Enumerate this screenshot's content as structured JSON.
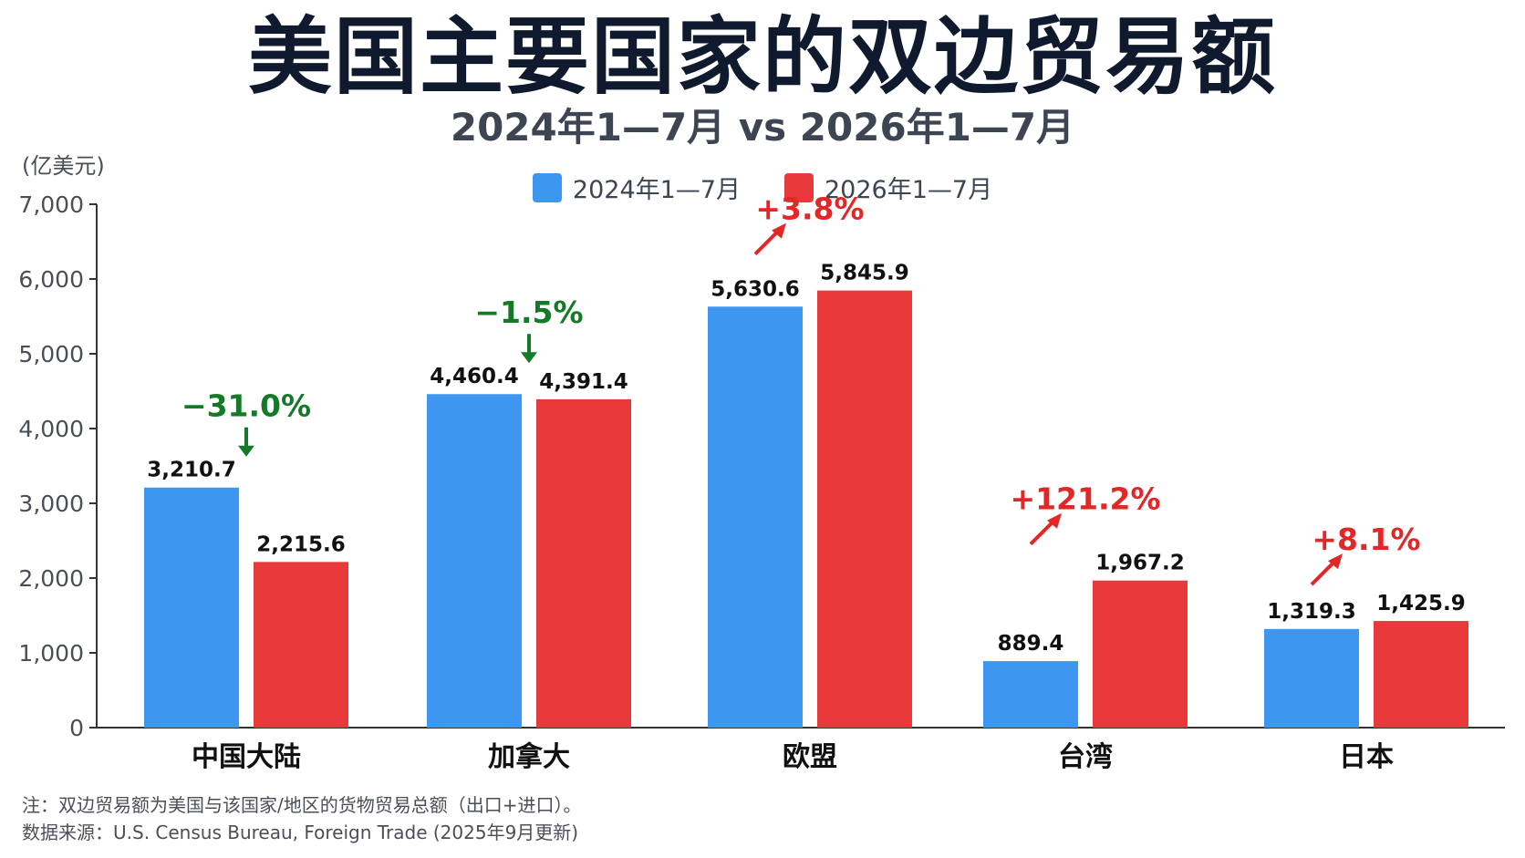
{
  "chart_data": {
    "type": "bar",
    "title": "美国主要国家的双边贸易额",
    "subtitle": "2024年1—7月 vs 2026年1—7月",
    "ylabel": "(亿美元)",
    "ylim": [
      0,
      7000
    ],
    "yticks": [
      0,
      1000,
      2000,
      3000,
      4000,
      5000,
      6000,
      7000
    ],
    "ytick_labels": [
      "0",
      "1,000",
      "2,000",
      "3,000",
      "4,000",
      "5,000",
      "6,000",
      "7,000"
    ],
    "legend_position": "top-center",
    "grid": false,
    "categories": [
      "中国大陆",
      "加拿大",
      "欧盟",
      "台湾",
      "日本"
    ],
    "series": [
      {
        "name": "2024年1—7月",
        "color": "#3d96f0",
        "values": [
          3210.7,
          4460.4,
          5630.6,
          889.4,
          1319.3
        ],
        "labels": [
          "3,210.7",
          "4,460.4",
          "5,630.6",
          "889.4",
          "1,319.3"
        ]
      },
      {
        "name": "2026年1—7月",
        "color": "#e83a3a",
        "values": [
          2215.6,
          4391.4,
          5845.9,
          1967.2,
          1425.9
        ],
        "labels": [
          "2,215.6",
          "4,391.4",
          "5,845.9",
          "1,967.2",
          "1,425.9"
        ]
      }
    ],
    "changes": [
      {
        "label": "−31.0%",
        "direction": "down",
        "color": "#147a28"
      },
      {
        "label": "−1.5%",
        "direction": "down",
        "color": "#147a28"
      },
      {
        "label": "+3.8%",
        "direction": "up",
        "color": "#e32626"
      },
      {
        "label": "+121.2%",
        "direction": "up",
        "color": "#e32626"
      },
      {
        "label": "+8.1%",
        "direction": "up",
        "color": "#e32626"
      }
    ]
  },
  "notes": {
    "note": "注：双边贸易额为美国与该国家/地区的货物贸易总额（出口+进口）。",
    "source": "数据来源：U.S. Census Bureau, Foreign Trade (2025年9月更新)"
  }
}
